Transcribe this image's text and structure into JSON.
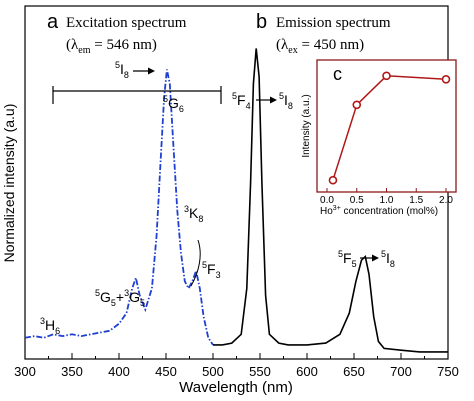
{
  "chart_data": [
    {
      "type": "line",
      "panel": "a",
      "title": "Excitation spectrum",
      "subtitle": "(λem = 546 nm)",
      "xlabel": "Wavelength (nm)",
      "ylabel": "Normalized intensity (a.u)",
      "xlim": [
        300,
        750
      ],
      "ylim": [
        0,
        1.0
      ],
      "x_ticks": [
        300,
        350,
        400,
        450,
        500,
        550,
        600,
        650,
        700,
        750
      ],
      "grid": false,
      "series": [
        {
          "line_color": "#1f3fd1",
          "line_style": "dash-dot",
          "points": [
            [
              300,
              0.06
            ],
            [
              310,
              0.065
            ],
            [
              320,
              0.06
            ],
            [
              330,
              0.07
            ],
            [
              340,
              0.065
            ],
            [
              350,
              0.07
            ],
            [
              360,
              0.065
            ],
            [
              370,
              0.07
            ],
            [
              380,
              0.075
            ],
            [
              390,
              0.08
            ],
            [
              400,
              0.1
            ],
            [
              408,
              0.13
            ],
            [
              414,
              0.2
            ],
            [
              418,
              0.23
            ],
            [
              422,
              0.18
            ],
            [
              428,
              0.14
            ],
            [
              435,
              0.2
            ],
            [
              440,
              0.35
            ],
            [
              444,
              0.55
            ],
            [
              448,
              0.74
            ],
            [
              451,
              0.82
            ],
            [
              454,
              0.78
            ],
            [
              458,
              0.6
            ],
            [
              462,
              0.42
            ],
            [
              466,
              0.3
            ],
            [
              470,
              0.22
            ],
            [
              474,
              0.2
            ],
            [
              478,
              0.22
            ],
            [
              482,
              0.25
            ],
            [
              486,
              0.2
            ],
            [
              490,
              0.12
            ],
            [
              495,
              0.06
            ],
            [
              500,
              0.04
            ]
          ]
        }
      ],
      "annotations": [
        {
          "text": "3H6",
          "x": 338
        },
        {
          "text": "5G5+3G5",
          "x": 420
        },
        {
          "text": "5G6",
          "x": 452
        },
        {
          "text": "3K8",
          "x": 474
        },
        {
          "text": "5F3",
          "x": 488
        },
        {
          "text": "5I8",
          "x": 418
        }
      ]
    },
    {
      "type": "line",
      "panel": "b",
      "title": "Emission spectrum",
      "subtitle": "(λex = 450 nm)",
      "xlim": [
        300,
        750
      ],
      "ylim": [
        0,
        1.0
      ],
      "series": [
        {
          "line_color": "#000000",
          "line_style": "solid",
          "points": [
            [
              500,
              0.04
            ],
            [
              510,
              0.04
            ],
            [
              520,
              0.045
            ],
            [
              530,
              0.07
            ],
            [
              536,
              0.2
            ],
            [
              540,
              0.5
            ],
            [
              543,
              0.78
            ],
            [
              546,
              0.88
            ],
            [
              549,
              0.8
            ],
            [
              552,
              0.5
            ],
            [
              556,
              0.18
            ],
            [
              560,
              0.07
            ],
            [
              570,
              0.045
            ],
            [
              580,
              0.04
            ],
            [
              600,
              0.04
            ],
            [
              620,
              0.045
            ],
            [
              635,
              0.07
            ],
            [
              645,
              0.13
            ],
            [
              652,
              0.22
            ],
            [
              658,
              0.28
            ],
            [
              662,
              0.29
            ],
            [
              666,
              0.24
            ],
            [
              671,
              0.12
            ],
            [
              676,
              0.05
            ],
            [
              682,
              0.03
            ],
            [
              700,
              0.025
            ],
            [
              720,
              0.02
            ],
            [
              750,
              0.02
            ]
          ]
        }
      ],
      "annotations": [
        {
          "text": "5F4→5I8",
          "x": 548
        },
        {
          "text": "5F5→5I8",
          "x": 662
        }
      ]
    },
    {
      "type": "line",
      "panel": "c",
      "inset": true,
      "xlabel": "Ho3+ concentration (mol%)",
      "ylabel": "Intensity (a.u.)",
      "xlim": [
        0.0,
        2.0
      ],
      "x_ticks": [
        0.0,
        0.5,
        1.0,
        1.5,
        2.0
      ],
      "line_color": "#b01818",
      "marker": "open-circle",
      "series": [
        {
          "x": [
            0.1,
            0.5,
            1.0,
            2.0
          ],
          "y": [
            0.05,
            0.7,
            0.95,
            0.92
          ]
        }
      ]
    }
  ],
  "labels": {
    "panel_a": "a",
    "title_a": "Excitation spectrum",
    "sub_a_open": "(λ",
    "sub_a_sub": "em",
    "sub_a_rest": " = 546 nm)",
    "panel_b": "b",
    "title_b": "Emission spectrum",
    "sub_b_open": "(λ",
    "sub_b_sub": "ex",
    "sub_b_rest": " = 450 nm)",
    "panel_c": "c",
    "xlabel": "Wavelength (nm)",
    "ylabel": "Normalized intensity (a.u)",
    "inset_ylabel": "Intensity (a.u.)",
    "inset_xlabel_pre": "Ho",
    "inset_xlabel_sup": "3+",
    "inset_xlabel_post": " concentration (mol%)",
    "bracket_sup": "5",
    "bracket_label": "I",
    "bracket_sub": "8",
    "arrow": "→"
  }
}
